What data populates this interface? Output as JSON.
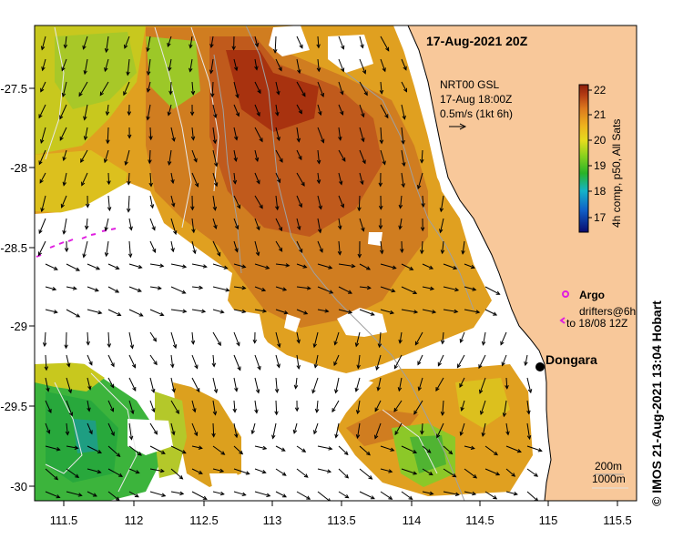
{
  "header": {
    "datetime": "17-Aug-2021 20Z"
  },
  "product": {
    "line1": "NRT00 GSL",
    "line2": "17-Aug 18:00Z",
    "scale_label": "0.5m/s (1kt 6h)"
  },
  "colorbar": {
    "ticks": [
      "22",
      "21",
      "20",
      "19",
      "18",
      "17"
    ],
    "label": "4h comp, p50, All Sats",
    "colors": [
      "#0a0a6e",
      "#1060c8",
      "#14b4c8",
      "#28b428",
      "#8cd21e",
      "#e6dc1e",
      "#eeb41e",
      "#dc781e",
      "#b43c14",
      "#8c1e0a"
    ]
  },
  "axes": {
    "x_ticks": [
      "111.5",
      "112",
      "112.5",
      "113",
      "113.5",
      "114",
      "114.5",
      "115",
      "115.5"
    ],
    "y_ticks": [
      "-27.5",
      "-28",
      "-28.5",
      "-29",
      "-29.5",
      "-30"
    ]
  },
  "legend": {
    "argo": "Argo",
    "drifters_line1": "drifters@6h",
    "drifters_line2": "to 18/08 12Z",
    "depth1": "200m",
    "depth2": "1000m"
  },
  "place": {
    "name": "Dongara"
  },
  "credit": "© IMOS 21-Aug-2021 13:04 Hobart",
  "colors": {
    "land": "#f8c89a",
    "argo": "#e01ee0",
    "background": "#ffffff"
  }
}
